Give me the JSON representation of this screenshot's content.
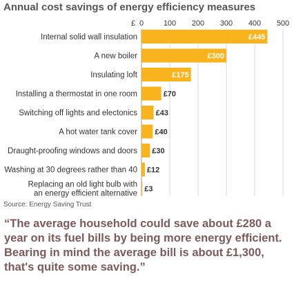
{
  "chart_data": {
    "type": "bar",
    "orientation": "horizontal",
    "title": "Annual cost savings of energy efficiency measures",
    "axis_unit": "£",
    "xlim": [
      0,
      500
    ],
    "ticks": [
      0,
      100,
      200,
      300,
      400,
      500
    ],
    "categories": [
      [
        "Internal solid wall insulation"
      ],
      [
        "A new boiler"
      ],
      [
        "Insulating loft"
      ],
      [
        "Installing a thermostat in one room"
      ],
      [
        "Switching off lights and electonics"
      ],
      [
        "A hot water tank cover"
      ],
      [
        "Draught-proofing windows and doors"
      ],
      [
        "Washing at 30 degrees rather than 40"
      ],
      [
        "Replacing an old light bulb with",
        "an energy efficient alternative"
      ]
    ],
    "values": [
      445,
      300,
      175,
      70,
      43,
      40,
      30,
      12,
      3
    ],
    "value_labels": [
      "£445",
      "£300",
      "£175",
      "£70",
      "£43",
      "£40",
      "£30",
      "£12",
      "£3"
    ],
    "grid": true,
    "bar_color": "#f8b31d",
    "grid_color": "#d7d7d7"
  },
  "source": "Source: Energy Saving Trust",
  "quote": "“The average household could save about £280 a year on its fuel bills by being more energy efficient. Bearing in mind the average bill is about £1,300, that's quite some saving.”"
}
